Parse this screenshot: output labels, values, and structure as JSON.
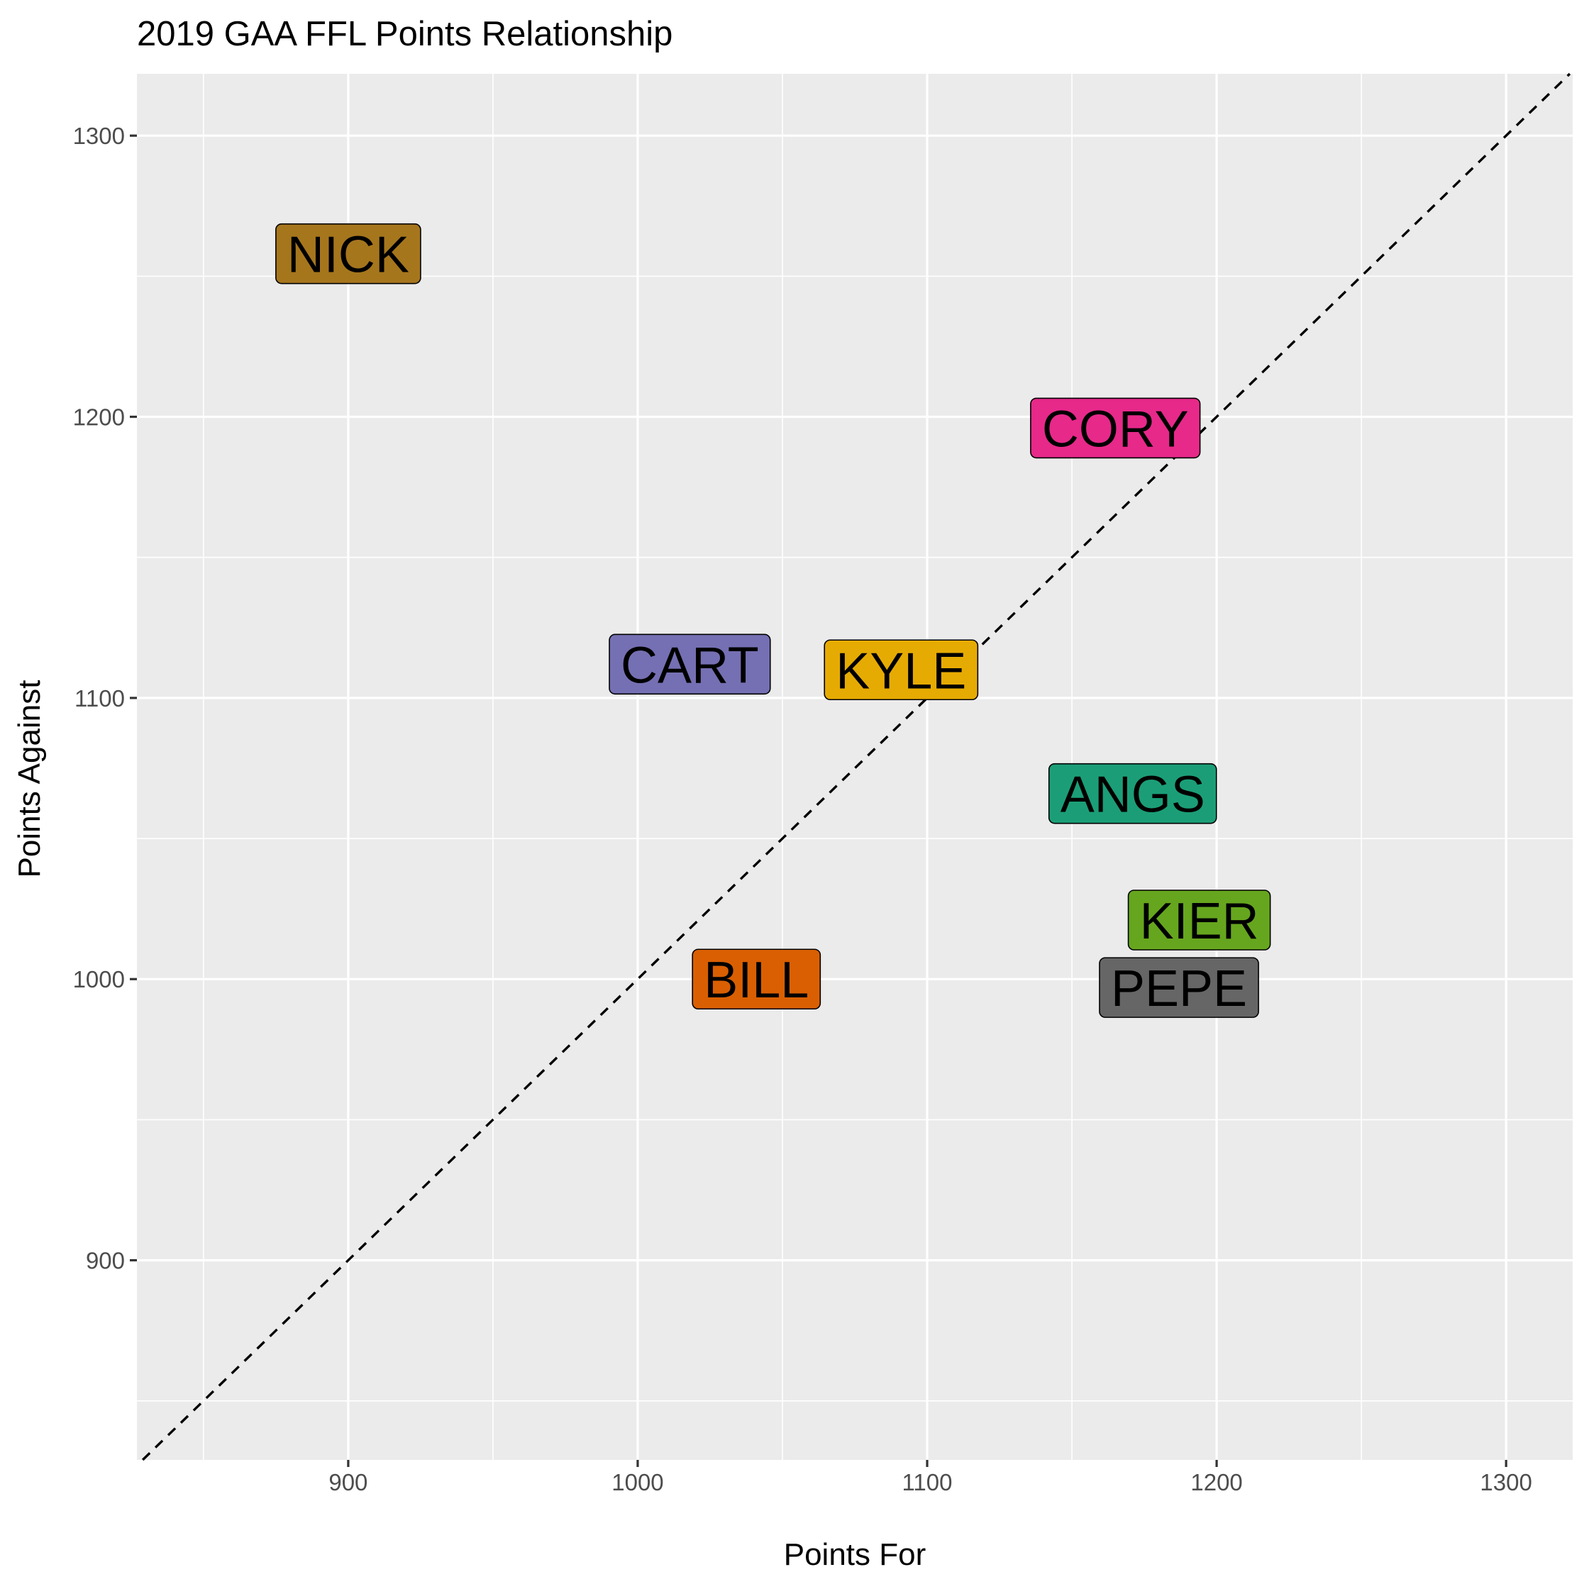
{
  "chart_data": {
    "type": "scatter",
    "title": "2019 GAA FFL Points Relationship",
    "xlabel": "Points For",
    "ylabel": "Points Against",
    "xlim": [
      827,
      1323
    ],
    "ylim": [
      829,
      1322
    ],
    "x_ticks": [
      900,
      1000,
      1100,
      1200,
      1300
    ],
    "y_ticks": [
      900,
      1000,
      1100,
      1200,
      1300
    ],
    "grid": true,
    "reference_line": {
      "type": "identity",
      "style": "dashed",
      "color": "#000000"
    },
    "points": [
      {
        "label": "NICK",
        "x": 900,
        "y": 1258,
        "color": "#A6761D"
      },
      {
        "label": "CORY",
        "x": 1165,
        "y": 1196,
        "color": "#E7298A"
      },
      {
        "label": "CART",
        "x": 1018,
        "y": 1112,
        "color": "#7570B3"
      },
      {
        "label": "KYLE",
        "x": 1091,
        "y": 1110,
        "color": "#E6AB02"
      },
      {
        "label": "ANGS",
        "x": 1171,
        "y": 1066,
        "color": "#1B9E77"
      },
      {
        "label": "KIER",
        "x": 1194,
        "y": 1021,
        "color": "#66A61E"
      },
      {
        "label": "BILL",
        "x": 1041,
        "y": 1000,
        "color": "#D95F02"
      },
      {
        "label": "PEPE",
        "x": 1187,
        "y": 997,
        "color": "#666666"
      }
    ]
  }
}
